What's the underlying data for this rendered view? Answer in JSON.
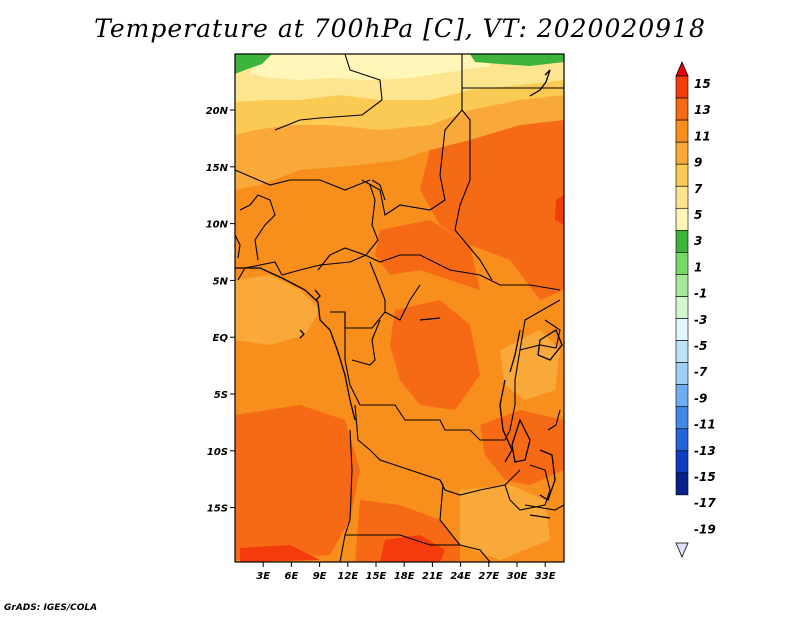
{
  "title": "Temperature at 700hPa [C], VT: 2020020918",
  "credit": "GrADS: IGES/COLA",
  "map": {
    "lon_labels": [
      "3E",
      "6E",
      "9E",
      "12E",
      "15E",
      "18E",
      "21E",
      "24E",
      "27E",
      "30E",
      "33E"
    ],
    "lat_labels": [
      "20N",
      "15N",
      "10N",
      "5N",
      "EQ",
      "5S",
      "10S",
      "15S"
    ],
    "lon_range": [
      0,
      35
    ],
    "lat_range": [
      -20,
      24.5
    ]
  },
  "colorbar": {
    "labels": [
      "15",
      "13",
      "11",
      "9",
      "7",
      "5",
      "3",
      "1",
      "-1",
      "-3",
      "-5",
      "-7",
      "-9",
      "-11",
      "-13",
      "-15",
      "-17",
      "-19"
    ],
    "colors": [
      "#e8000b",
      "#f43b0c",
      "#f66a15",
      "#f88f1d",
      "#f9a93a",
      "#fbca54",
      "#fde58f",
      "#fff6b8",
      "#3fb43c",
      "#76d865",
      "#a6e99a",
      "#d5f7cf",
      "#e4f6fb",
      "#bfe2f7",
      "#9fcff4",
      "#6daef0",
      "#4288e6",
      "#2463d8",
      "#0e3fc0",
      "#0b1f8c",
      "#120561"
    ]
  },
  "colors": {
    "t_above_13": "#f43b0c",
    "t_11_13": "#f66a15",
    "t_9_11": "#f88f1d",
    "t_7_9": "#f9a93a",
    "t_5_7": "#fbca54",
    "t_3_5": "#fde58f",
    "t_1_3": "#3fb43c",
    "t_top": "#fff6b8"
  }
}
